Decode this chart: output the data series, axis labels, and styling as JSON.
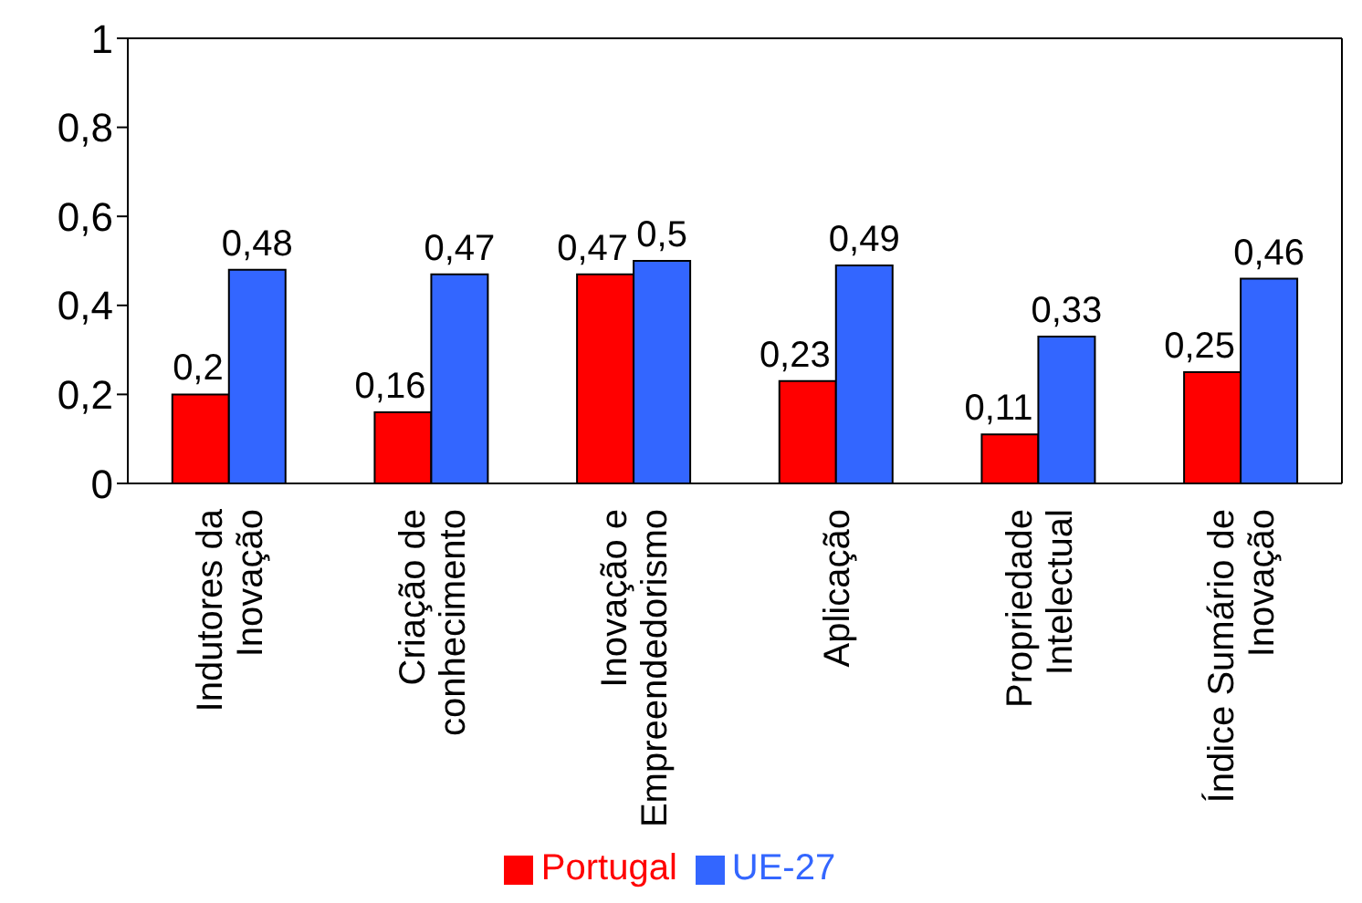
{
  "chart_data": {
    "type": "bar",
    "categories": [
      "Indutores da Inovação",
      "Criação de conhecimento",
      "Inovação e Empreendedorismo",
      "Aplicação",
      "Propriedade Intelectual",
      "Índice Sumário de Inovação"
    ],
    "series": [
      {
        "name": "Portugal",
        "color": "#ff0000",
        "values": [
          0.2,
          0.16,
          0.47,
          0.23,
          0.11,
          0.25
        ],
        "value_labels": [
          "0,2",
          "0,16",
          "0,47",
          "0,23",
          "0,11",
          "0,25"
        ]
      },
      {
        "name": "UE-27",
        "color": "#3366ff",
        "values": [
          0.48,
          0.47,
          0.5,
          0.49,
          0.33,
          0.46
        ],
        "value_labels": [
          "0,48",
          "0,47",
          "0,5",
          "0,49",
          "0,33",
          "0,46"
        ]
      }
    ],
    "ylim": [
      0,
      1
    ],
    "yticks": [
      0,
      {
        "value": 0.2,
        "label": "0,2"
      },
      {
        "value": 0.4,
        "label": "0,4"
      },
      {
        "value": 0.6,
        "label": "0,6"
      },
      {
        "value": 0.8,
        "label": "0,8"
      },
      1
    ],
    "grid": false,
    "legend": "bottom"
  }
}
